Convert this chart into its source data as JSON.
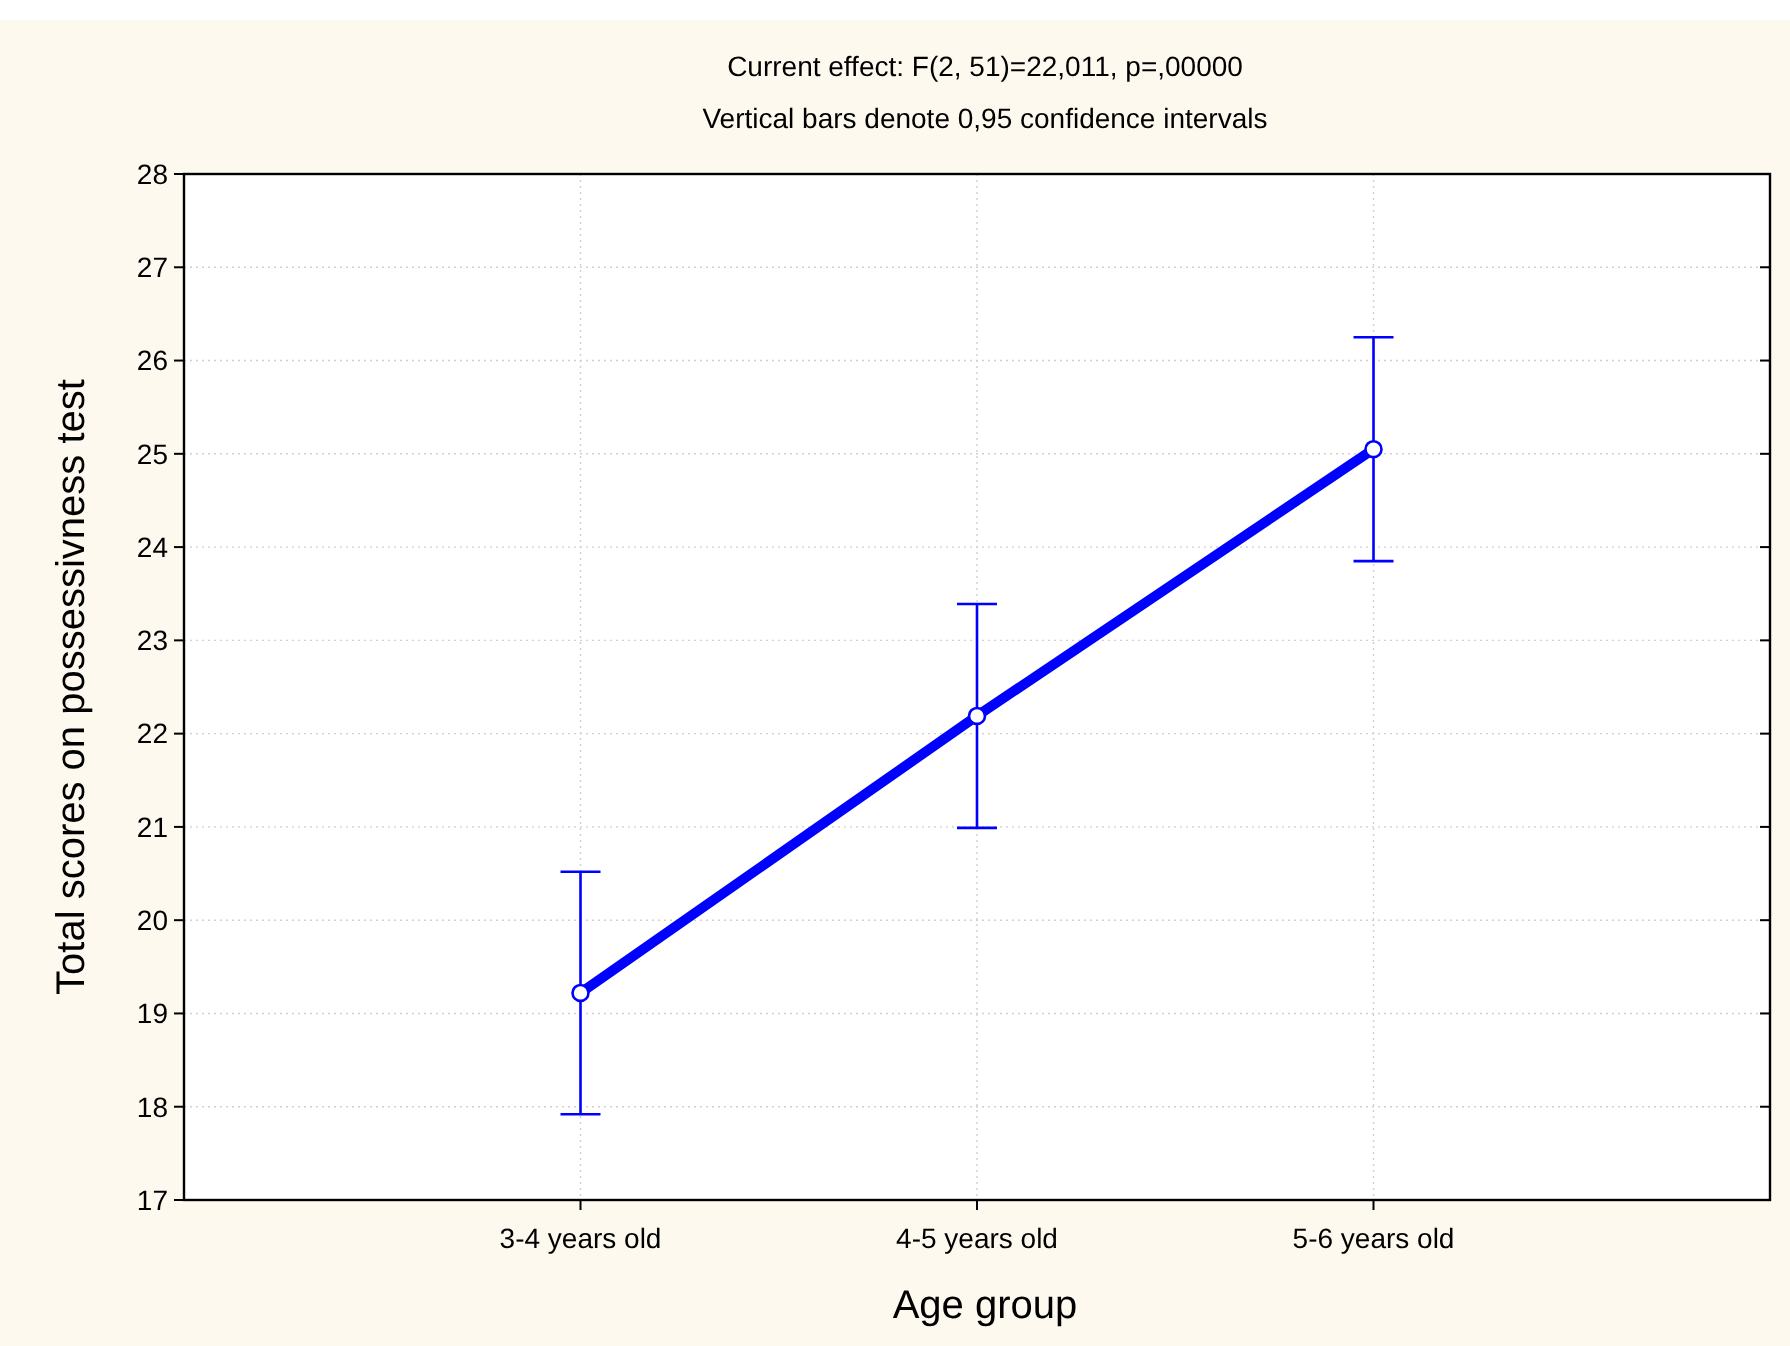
{
  "chart_data": {
    "type": "line",
    "title": "Current effect: F(2, 51)=22,011, p=,00000",
    "subtitle": "Vertical bars denote 0,95 confidence intervals",
    "xlabel": "Age group",
    "ylabel": "Total scores on possessivness test",
    "categories": [
      "3-4 years old",
      "4-5 years old",
      "5-6 years old"
    ],
    "series": [
      {
        "color": "#0000ff",
        "values": [
          19.22,
          22.19,
          25.05
        ],
        "errors": [
          1.3,
          1.2,
          1.2
        ]
      }
    ],
    "ylim": [
      17,
      28
    ],
    "yticks": [
      17,
      18,
      19,
      20,
      21,
      22,
      23,
      24,
      25,
      26,
      27,
      28
    ],
    "grid": true,
    "marker": "circle",
    "line_style": "solid"
  }
}
